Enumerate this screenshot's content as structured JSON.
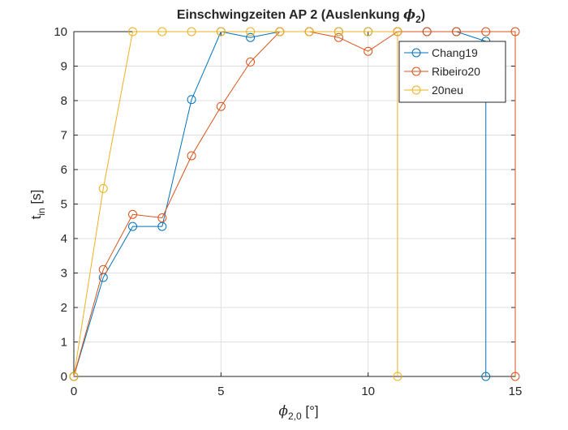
{
  "chart_data": {
    "type": "line",
    "title_main": "Einschwingzeiten AP 2 (Auslenkung ",
    "title_symbol": "ϕ",
    "title_sub": "2",
    "title_close": ")",
    "xlabel_symbol": "ϕ",
    "xlabel_sub": "2,0",
    "xlabel_unit": " [°]",
    "ylabel_main": "t",
    "ylabel_sub": "in",
    "ylabel_unit": " [s]",
    "xlim": [
      0,
      15
    ],
    "ylim": [
      0,
      10
    ],
    "xticks": [
      0,
      5,
      10,
      15
    ],
    "yticks": [
      0,
      1,
      2,
      3,
      4,
      5,
      6,
      7,
      8,
      9,
      10
    ],
    "grid": true,
    "legend_position": "top-right",
    "series": [
      {
        "name": "Chang19",
        "color": "#0072BD",
        "x": [
          0,
          1,
          2,
          3,
          4,
          5,
          6,
          7,
          8,
          9,
          10,
          11,
          12,
          13,
          14,
          14
        ],
        "y": [
          0,
          2.87,
          4.35,
          4.35,
          8.03,
          10,
          9.83,
          10,
          10,
          10,
          10,
          10,
          10,
          10,
          9.72,
          0
        ]
      },
      {
        "name": "Ribeiro20",
        "color": "#D95319",
        "x": [
          0,
          1,
          2,
          3,
          4,
          5,
          6,
          7,
          8,
          9,
          10,
          11,
          12,
          13,
          14,
          15,
          15
        ],
        "y": [
          0,
          3.1,
          4.7,
          4.6,
          6.4,
          7.83,
          9.12,
          10,
          10,
          9.83,
          9.43,
          10,
          10,
          10,
          10,
          10,
          0
        ]
      },
      {
        "name": "20neu",
        "color": "#EDB120",
        "x": [
          0,
          1,
          2,
          3,
          4,
          5,
          6,
          7,
          8,
          9,
          10,
          11,
          11
        ],
        "y": [
          0,
          5.45,
          10,
          10,
          10,
          10,
          10,
          10,
          10,
          10,
          10,
          10,
          0
        ]
      }
    ]
  }
}
